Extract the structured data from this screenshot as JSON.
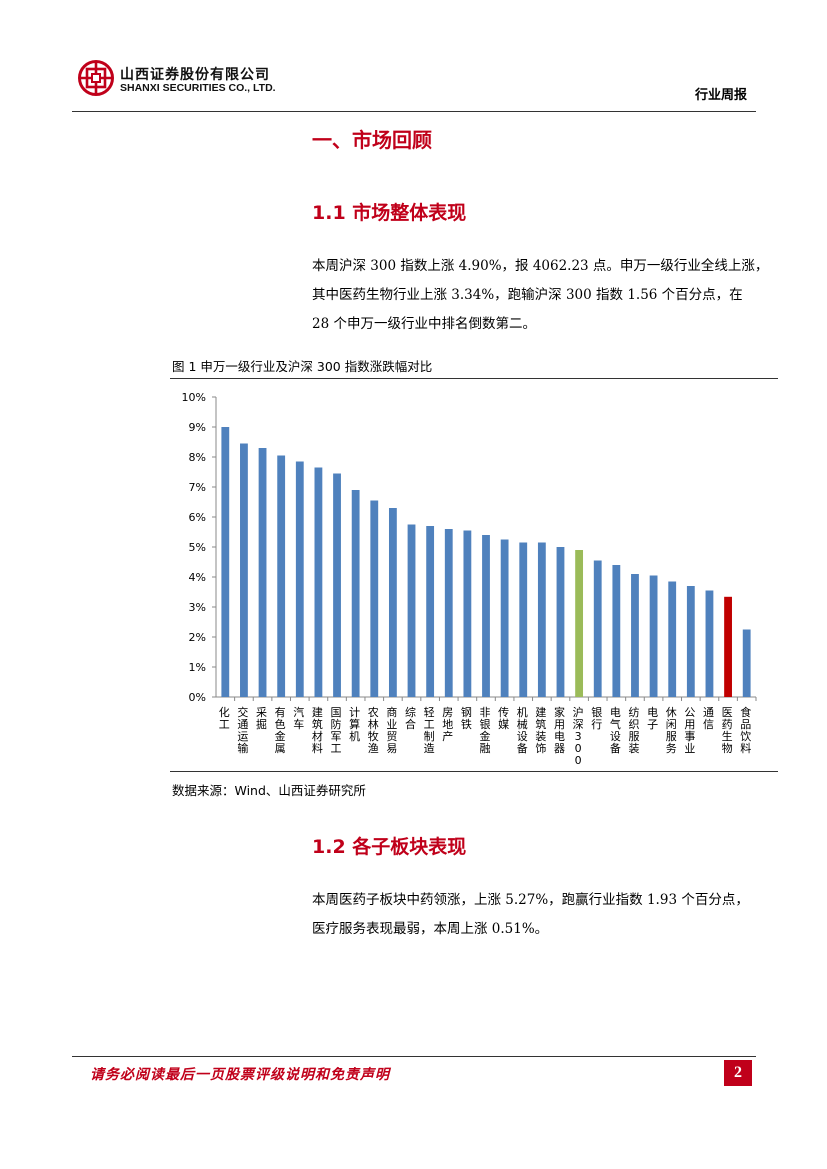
{
  "header": {
    "company_cn": "山西证券股份有限公司",
    "company_en": "SHANXI SECURITIES CO., LTD.",
    "report_type": "行业周报"
  },
  "section": {
    "title": "一、市场回顾"
  },
  "subsection1": {
    "title": "1.1 市场整体表现",
    "lines": [
      "本周沪深 300 指数上涨 4.90%，报 4062.23 点。申万一级行业全线上涨，",
      "其中医药生物行业上涨 3.34%，跑输沪深 300 指数 1.56 个百分点，在",
      "28 个申万一级行业中排名倒数第二。"
    ]
  },
  "figure": {
    "title": "图 1  申万一级行业及沪深 300 指数涨跌幅对比",
    "source": "数据来源：Wind、山西证券研究所"
  },
  "chart_data": {
    "type": "bar",
    "categories": [
      "化工",
      "交通运输",
      "采掘",
      "有色金属",
      "汽车",
      "建筑材料",
      "国防军工",
      "计算机",
      "农林牧渔",
      "商业贸易",
      "综合",
      "轻工制造",
      "房地产",
      "钢铁",
      "非银金融",
      "传媒",
      "机械设备",
      "建筑装饰",
      "家用电器",
      "沪深300",
      "银行",
      "电气设备",
      "纺织服装",
      "电子",
      "休闲服务",
      "公用事业",
      "通信",
      "医药生物",
      "食品饮料"
    ],
    "values": [
      9.0,
      8.45,
      8.3,
      8.05,
      7.85,
      7.65,
      7.45,
      6.9,
      6.55,
      6.3,
      5.75,
      5.7,
      5.6,
      5.55,
      5.4,
      5.25,
      5.15,
      5.15,
      5.0,
      4.9,
      4.55,
      4.4,
      4.1,
      4.05,
      3.85,
      3.7,
      3.55,
      3.34,
      2.25
    ],
    "colors": {
      "default": "#4f81bd",
      "highlight_index": "#9bbb59",
      "highlight_sector": "#c00000"
    },
    "highlight_index_category": "沪深300",
    "highlight_sector_category": "医药生物",
    "yticks": [
      "0%",
      "1%",
      "2%",
      "3%",
      "4%",
      "5%",
      "6%",
      "7%",
      "8%",
      "9%",
      "10%"
    ],
    "ylim": [
      0,
      10
    ],
    "grid": false,
    "legend": "none"
  },
  "subsection2": {
    "title": "1.2 各子板块表现",
    "lines": [
      "本周医药子板块中药领涨，上涨 5.27%，跑赢行业指数 1.93 个百分点，",
      "医疗服务表现最弱，本周上涨 0.51%。"
    ]
  },
  "footer": {
    "note": "请务必阅读最后一页股票评级说明和免责声明",
    "page": "2"
  }
}
